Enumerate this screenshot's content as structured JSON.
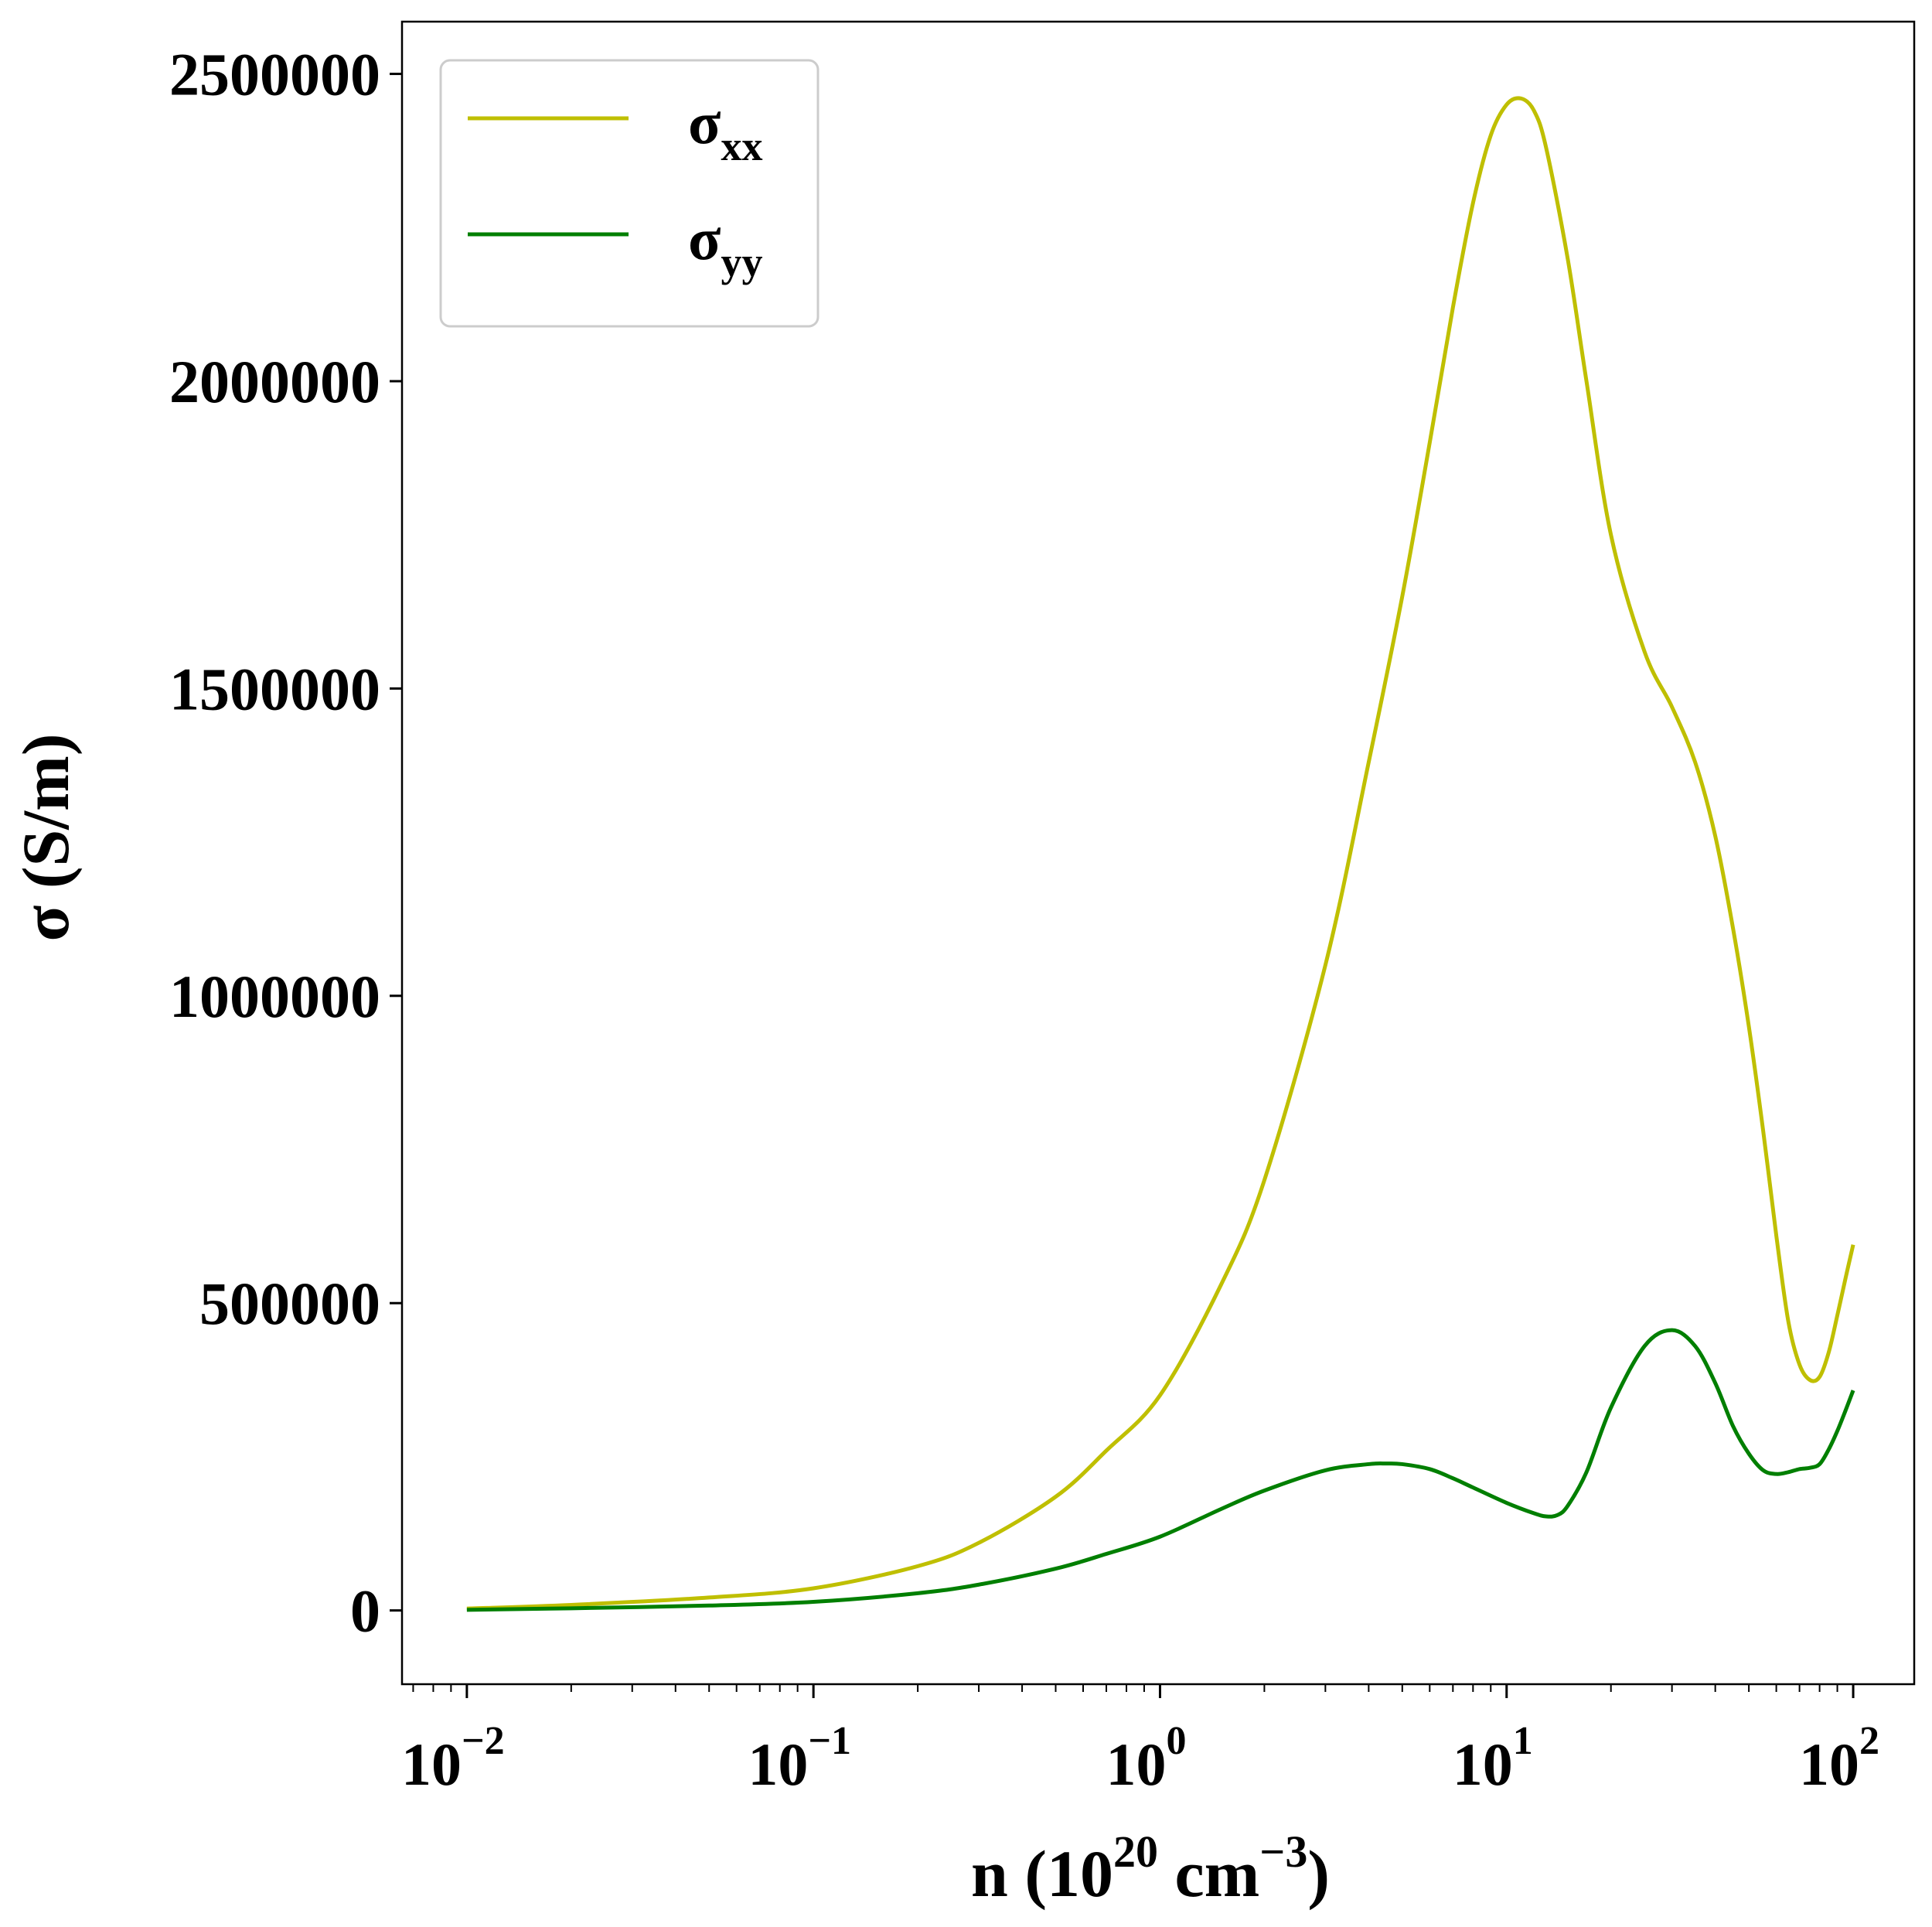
{
  "chart_data": {
    "type": "line",
    "xscale": "log",
    "xlim": [
      0.0065,
      150
    ],
    "ylim": [
      -120000,
      2585000
    ],
    "x_tick_labels": [
      {
        "base": "10",
        "exp": "−2",
        "value": 0.01
      },
      {
        "base": "10",
        "exp": "−1",
        "value": 0.1
      },
      {
        "base": "10",
        "exp": "0",
        "value": 1
      },
      {
        "base": "10",
        "exp": "1",
        "value": 10
      },
      {
        "base": "10",
        "exp": "2",
        "value": 100
      }
    ],
    "y_tick_labels": [
      "0",
      "500000",
      "1000000",
      "1500000",
      "2000000",
      "2500000"
    ],
    "y_tick_values": [
      0,
      500000,
      1000000,
      1500000,
      2000000,
      2500000
    ],
    "xlabel": {
      "main": "n (10",
      "exp1": "20",
      "mid": " cm",
      "exp2": "−3",
      "end": ")"
    },
    "ylabel": "σ (S/m)",
    "legend_position": "top-left",
    "grid": false,
    "series": [
      {
        "name": "σxx",
        "name_base": "σ",
        "name_sub": "xx",
        "color": "#bfbf00",
        "x": [
          0.01,
          0.02,
          0.05,
          0.1,
          0.2,
          0.3,
          0.5,
          0.7,
          1.0,
          1.5,
          2.0,
          3.0,
          4.0,
          5.0,
          6.0,
          7.0,
          8.0,
          9.0,
          10.0,
          11.0,
          12.0,
          13.0,
          15.0,
          17.0,
          20.0,
          25.0,
          30.0,
          35.0,
          40.0,
          45.0,
          50.0,
          55.0,
          60.0,
          65.0,
          70.0,
          75.0,
          80.0,
          85.0,
          90.0,
          95.0,
          100.0
        ],
        "y": [
          3000,
          9000,
          21000,
          36000,
          72000,
          110000,
          185000,
          260000,
          350000,
          530000,
          700000,
          1050000,
          1380000,
          1650000,
          1900000,
          2120000,
          2290000,
          2400000,
          2450000,
          2460000,
          2440000,
          2380000,
          2200000,
          2000000,
          1750000,
          1560000,
          1470000,
          1380000,
          1260000,
          1110000,
          950000,
          780000,
          610000,
          470000,
          400000,
          375000,
          380000,
          420000,
          480000,
          540000,
          595000
        ]
      },
      {
        "name": "σyy",
        "name_base": "σ",
        "name_sub": "yy",
        "color": "#007f00",
        "x": [
          0.01,
          0.02,
          0.05,
          0.1,
          0.2,
          0.3,
          0.5,
          0.7,
          1.0,
          1.5,
          2.0,
          3.0,
          4.0,
          4.5,
          5.0,
          6.0,
          7.0,
          8.0,
          10.0,
          12.0,
          13.0,
          14.0,
          15.0,
          17.0,
          20.0,
          25.0,
          30.0,
          35.0,
          40.0,
          45.0,
          50.0,
          55.0,
          60.0,
          65.0,
          70.0,
          75.0,
          80.0,
          85.0,
          90.0,
          95.0,
          100.0
        ],
        "y": [
          1000,
          3500,
          8000,
          14000,
          28000,
          42000,
          68000,
          92000,
          120000,
          165000,
          195000,
          228000,
          238000,
          239000,
          238000,
          230000,
          215000,
          200000,
          175000,
          158000,
          153000,
          155000,
          170000,
          225000,
          330000,
          430000,
          456000,
          430000,
          370000,
          300000,
          255000,
          228000,
          222000,
          225000,
          230000,
          232000,
          238000,
          262000,
          292000,
          325000,
          358000
        ]
      }
    ]
  }
}
